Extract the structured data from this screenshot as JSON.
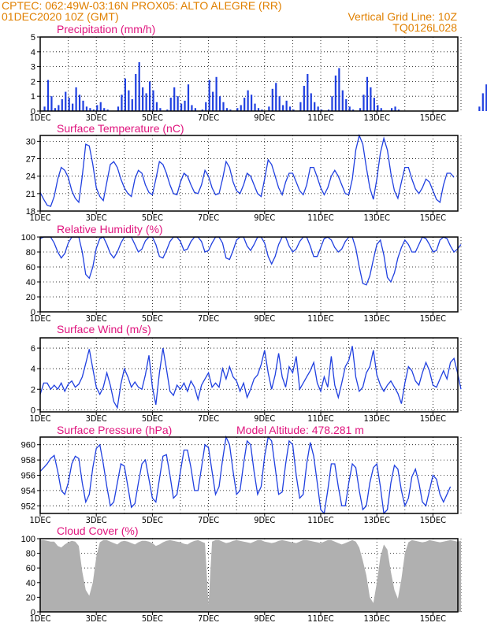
{
  "header": {
    "line1_left": "CPTEC:   062:49W-03:16N   PROX05: ALTO ALEGRE (RR)",
    "line2_left": "01DEC2020 10Z (GMT)",
    "line2_right": "Vertical Grid Line: 10Z",
    "line3_right": "TQ0126L028"
  },
  "colors": {
    "header": "#e08000",
    "panel_title": "#e0157e",
    "series": "#2040e0",
    "cloud_fill": "#b0b0b0"
  },
  "x_tick_labels": [
    "1DEC",
    "3DEC",
    "5DEC",
    "7DEC",
    "9DEC",
    "11DEC",
    "13DEC",
    "15DEC"
  ],
  "chart_data": [
    {
      "id": "precip",
      "type": "bar",
      "title": "Precipitation (mm/h)",
      "x_range_days": [
        0,
        15.2
      ],
      "ylim": [
        0,
        5
      ],
      "yticks": [
        0,
        1,
        2,
        3,
        4,
        5
      ],
      "x_step_hours": 3,
      "values": [
        0.0,
        0.3,
        2.1,
        1.0,
        0.2,
        0.4,
        0.8,
        1.3,
        0.9,
        0.5,
        1.6,
        1.1,
        0.7,
        0.3,
        0.2,
        0.1,
        0.4,
        0.6,
        0.2,
        0.1,
        0.0,
        0.0,
        0.3,
        1.1,
        2.2,
        1.4,
        0.8,
        2.5,
        3.3,
        1.6,
        1.2,
        2.0,
        1.4,
        0.6,
        0.2,
        0.0,
        0.1,
        0.9,
        1.6,
        1.0,
        0.5,
        0.7,
        1.8,
        0.4,
        0.2,
        0.0,
        0.1,
        0.6,
        2.1,
        1.3,
        2.3,
        1.0,
        0.6,
        0.2,
        0.1,
        0.0,
        0.2,
        0.4,
        0.9,
        1.4,
        1.1,
        0.5,
        0.2,
        0.1,
        0.0,
        0.3,
        1.5,
        1.9,
        1.0,
        0.4,
        0.7,
        0.3,
        0.1,
        0.0,
        0.6,
        1.7,
        2.5,
        1.2,
        0.6,
        0.3,
        0.1,
        0.0,
        0.1,
        1.0,
        2.4,
        2.9,
        1.4,
        0.8,
        0.3,
        0.1,
        0.0,
        0.2,
        1.1,
        2.3,
        1.6,
        0.9,
        0.4,
        0.2,
        0.0,
        0.0,
        0.2,
        0.3,
        0.1,
        0.0,
        0.0,
        0.0,
        0.0,
        0.0,
        0.0,
        0.0,
        0.0,
        0.0,
        0.0,
        0.0,
        0.0,
        0.0,
        0.0,
        0.0,
        0.0,
        0.0,
        0.0,
        0.0,
        0.0,
        0.0,
        0.0,
        0.3,
        1.2,
        1.8,
        0.9,
        0.3,
        0.1,
        0.0,
        0.4,
        1.4,
        2.0,
        1.3,
        0.6,
        0.4,
        1.1,
        0.9,
        1.8,
        1.3,
        0.4,
        0.6,
        1.5,
        1.2,
        0.5,
        0.2
      ]
    },
    {
      "id": "temp",
      "type": "line",
      "title": "Surface Temperature (nC)",
      "x_range_days": [
        0,
        15.2
      ],
      "ylim": [
        18,
        31
      ],
      "yticks": [
        18,
        21,
        24,
        27,
        30
      ],
      "x_step_hours": 3,
      "values": [
        21.2,
        20.0,
        19.0,
        18.8,
        20.5,
        23.5,
        25.5,
        25.0,
        23.8,
        21.5,
        20.2,
        19.5,
        24.0,
        29.5,
        29.2,
        26.0,
        22.0,
        20.5,
        19.8,
        23.0,
        26.0,
        26.5,
        25.5,
        23.5,
        22.0,
        21.0,
        20.5,
        23.5,
        25.0,
        24.5,
        22.5,
        21.2,
        20.8,
        23.5,
        26.5,
        26.0,
        24.5,
        22.5,
        21.0,
        20.8,
        23.0,
        24.5,
        24.0,
        22.5,
        21.2,
        21.0,
        22.5,
        25.0,
        24.0,
        22.0,
        20.8,
        21.0,
        23.5,
        26.5,
        25.5,
        23.0,
        21.5,
        21.0,
        22.5,
        24.5,
        24.0,
        22.5,
        21.0,
        20.5,
        23.5,
        26.8,
        26.0,
        24.0,
        22.0,
        20.8,
        23.0,
        24.5,
        24.5,
        23.0,
        21.5,
        20.8,
        22.5,
        25.5,
        25.5,
        23.8,
        22.0,
        20.8,
        22.0,
        24.0,
        25.0,
        24.0,
        22.5,
        21.0,
        20.8,
        23.5,
        28.5,
        31.0,
        29.5,
        25.5,
        22.0,
        20.0,
        23.5,
        28.0,
        30.5,
        28.5,
        24.5,
        21.5,
        20.2,
        23.0,
        25.5,
        25.5,
        23.5,
        21.8,
        21.0,
        22.0,
        23.5,
        23.0,
        21.5,
        20.0,
        19.5,
        22.5,
        24.5,
        24.5,
        23.8
      ]
    },
    {
      "id": "rh",
      "type": "line",
      "title": "Relative Humidity (%)",
      "x_range_days": [
        0,
        15.2
      ],
      "ylim": [
        0,
        100
      ],
      "yticks": [
        0,
        20,
        40,
        60,
        80,
        100
      ],
      "x_step_hours": 3,
      "values": [
        98,
        100,
        100,
        100,
        92,
        80,
        72,
        78,
        92,
        100,
        100,
        100,
        80,
        50,
        45,
        60,
        85,
        98,
        100,
        90,
        78,
        72,
        80,
        92,
        100,
        100,
        100,
        90,
        80,
        84,
        95,
        100,
        100,
        90,
        74,
        72,
        82,
        94,
        100,
        100,
        94,
        82,
        84,
        94,
        100,
        100,
        94,
        80,
        82,
        92,
        100,
        100,
        92,
        72,
        70,
        82,
        96,
        100,
        100,
        88,
        82,
        90,
        100,
        100,
        92,
        74,
        64,
        74,
        90,
        100,
        100,
        88,
        80,
        84,
        94,
        100,
        100,
        88,
        74,
        74,
        86,
        98,
        100,
        96,
        86,
        80,
        84,
        94,
        100,
        100,
        85,
        60,
        38,
        36,
        48,
        70,
        90,
        96,
        76,
        46,
        40,
        52,
        72,
        86,
        96,
        90,
        80,
        80,
        90,
        100,
        98,
        90,
        80,
        82,
        96,
        100,
        98,
        88,
        80,
        84,
        90
      ]
    },
    {
      "id": "wind",
      "type": "line",
      "title": "Surface Wind (m/s)",
      "x_range_days": [
        0,
        15.2
      ],
      "ylim": [
        -0.2,
        7
      ],
      "yticks": [
        0,
        2,
        4,
        6
      ],
      "x_step_hours": 3,
      "values": [
        1.5,
        2.6,
        2.6,
        2.0,
        2.4,
        2.0,
        2.6,
        1.8,
        2.5,
        2.8,
        2.2,
        2.5,
        3.2,
        4.5,
        5.9,
        4.0,
        2.2,
        1.5,
        2.2,
        3.6,
        2.4,
        0.8,
        0.2,
        2.5,
        4.0,
        3.2,
        2.2,
        2.7,
        2.2,
        2.0,
        3.4,
        5.3,
        2.2,
        0.5,
        3.6,
        6.0,
        4.0,
        1.8,
        1.4,
        2.4,
        2.0,
        2.6,
        1.8,
        2.8,
        2.2,
        1.0,
        2.4,
        3.0,
        3.6,
        2.2,
        2.6,
        2.2,
        4.0,
        3.0,
        4.2,
        3.2,
        2.8,
        1.8,
        2.6,
        1.2,
        2.0,
        3.0,
        3.4,
        4.4,
        5.8,
        3.6,
        2.0,
        3.4,
        5.5,
        3.2,
        2.2,
        4.2,
        3.6,
        5.2,
        2.0,
        2.6,
        3.2,
        3.8,
        4.6,
        2.6,
        1.8,
        3.2,
        2.2,
        5.2,
        2.4,
        1.2,
        2.6,
        4.2,
        4.8,
        6.2,
        3.2,
        1.8,
        2.2,
        3.6,
        4.2,
        5.8,
        3.4,
        2.4,
        1.8,
        2.4,
        2.8,
        2.2,
        1.6,
        0.6,
        2.6,
        4.2,
        3.8,
        2.8,
        2.4,
        3.6,
        4.6,
        3.8,
        2.4,
        2.2,
        3.0,
        3.8,
        3.0,
        4.6,
        5.0,
        3.6,
        2.0
      ]
    },
    {
      "id": "pressure",
      "type": "line",
      "title": "Surface Pressure (hPa)",
      "subtitle": "Model Altitude: 478.281  m",
      "x_range_days": [
        0,
        15.2
      ],
      "ylim": [
        951,
        961
      ],
      "yticks": [
        952,
        954,
        956,
        958,
        960
      ],
      "x_step_hours": 3,
      "values": [
        956.5,
        957.0,
        957.5,
        958.2,
        958.6,
        956.5,
        954.0,
        953.5,
        955.0,
        957.5,
        958.5,
        958.2,
        955.0,
        952.5,
        953.5,
        957.0,
        959.5,
        960.0,
        957.5,
        954.5,
        952.0,
        952.5,
        955.0,
        957.5,
        957.2,
        954.5,
        951.8,
        952.3,
        955.0,
        957.5,
        958.0,
        955.5,
        953.0,
        952.5,
        955.5,
        958.5,
        958.7,
        956.0,
        953.0,
        953.5,
        956.5,
        959.3,
        959.3,
        957.0,
        954.0,
        954.0,
        957.0,
        960.0,
        959.6,
        956.5,
        953.5,
        954.5,
        958.0,
        961.0,
        960.0,
        956.5,
        953.5,
        954.0,
        957.5,
        960.5,
        960.0,
        956.5,
        953.5,
        954.5,
        958.5,
        961.0,
        960.5,
        957.0,
        953.5,
        953.8,
        957.5,
        960.5,
        960.0,
        956.0,
        953.0,
        953.5,
        957.5,
        960.3,
        958.5,
        955.0,
        951.5,
        951.0,
        954.0,
        957.5,
        957.5,
        954.5,
        952.0,
        952.0,
        955.0,
        957.5,
        957.0,
        954.0,
        951.5,
        952.0,
        955.0,
        957.0,
        957.5,
        954.5,
        951.0,
        951.5,
        955.0,
        957.3,
        956.8,
        954.0,
        952.0,
        953.0,
        955.8,
        956.8,
        955.0,
        952.5,
        952.0,
        954.0,
        956.0,
        955.5,
        953.5,
        952.5,
        953.5,
        954.5
      ]
    },
    {
      "id": "cloud",
      "type": "area",
      "title": "Cloud Cover (%)",
      "x_range_days": [
        0,
        15.2
      ],
      "ylim": [
        0,
        100
      ],
      "yticks": [
        0,
        20,
        40,
        60,
        80,
        100
      ],
      "x_step_hours": 3,
      "values": [
        98,
        98,
        97,
        96,
        96,
        90,
        88,
        92,
        95,
        97,
        96,
        90,
        55,
        30,
        22,
        40,
        75,
        95,
        98,
        98,
        96,
        94,
        92,
        96,
        97,
        96,
        94,
        92,
        95,
        97,
        97,
        96,
        94,
        90,
        92,
        95,
        97,
        98,
        97,
        96,
        95,
        93,
        92,
        95,
        97,
        98,
        96,
        94,
        10,
        96,
        98,
        98,
        96,
        94,
        95,
        97,
        98,
        97,
        96,
        95,
        94,
        96,
        98,
        98,
        96,
        95,
        94,
        95,
        97,
        98,
        97,
        96,
        95,
        94,
        96,
        98,
        98,
        97,
        96,
        95,
        94,
        96,
        98,
        98,
        96,
        94,
        92,
        94,
        96,
        98,
        96,
        88,
        70,
        50,
        20,
        12,
        40,
        75,
        92,
        85,
        55,
        30,
        18,
        45,
        80,
        95,
        98,
        97,
        96,
        95,
        96,
        98,
        97,
        96,
        95,
        96,
        97,
        98,
        97,
        96,
        97
      ]
    }
  ]
}
